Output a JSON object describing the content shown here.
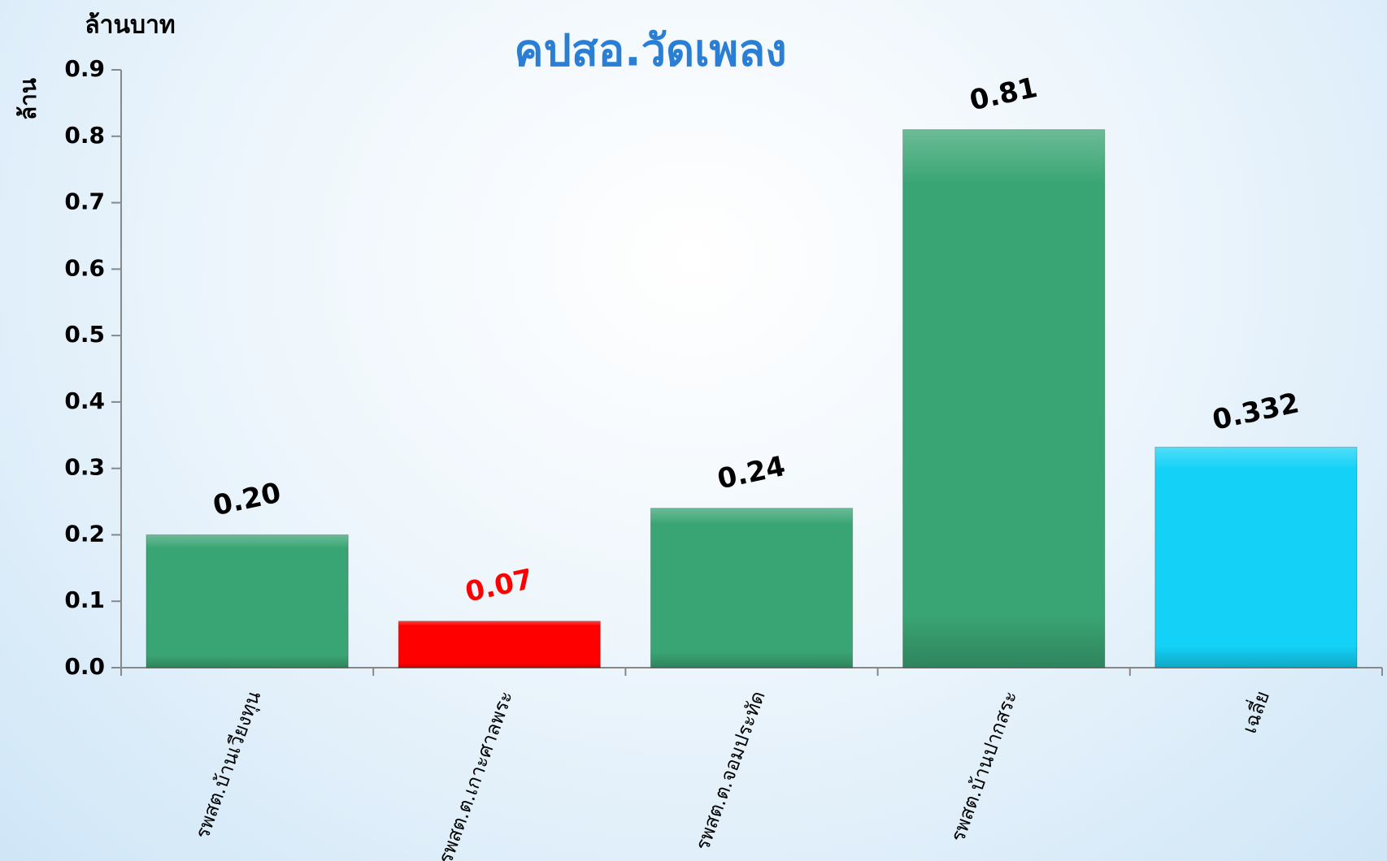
{
  "chart_data": {
    "type": "bar",
    "title": "คปสอ.วัดเพลง",
    "y_unit": "ล้านบาท",
    "ylabel": "ล้าน",
    "categories": [
      "รพสต.บ้านเวียงทุน",
      "รพสต.ต.เกาะศาลพระ",
      "รพสต.ต.จอมประทัด",
      "รพสต.บ้านปากสระ",
      "เฉลี่ย"
    ],
    "values": [
      0.2,
      0.07,
      0.24,
      0.81,
      0.332
    ],
    "value_labels": [
      "0.20",
      "0.07",
      "0.24",
      "0.81",
      "0.332"
    ],
    "colors": [
      "#3aa574",
      "#ff0000",
      "#3aa574",
      "#3aa574",
      "#14d2f7"
    ],
    "value_label_colors": [
      "#000000",
      "#ff0000",
      "#000000",
      "#000000",
      "#000000"
    ],
    "ylim": [
      0,
      0.9
    ],
    "yticks": [
      {
        "value": 0,
        "label": "0.0"
      },
      0.1,
      0.2,
      0.3,
      0.4,
      0.5,
      0.6,
      0.7,
      0.8,
      0.9
    ],
    "grid": false
  }
}
